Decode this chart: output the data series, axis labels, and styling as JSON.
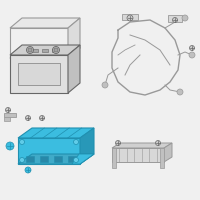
{
  "bg_color": "#f0f0f0",
  "line_color": "#999999",
  "dark_line": "#666666",
  "highlight_color": "#3bbde0",
  "highlight_dark": "#2090b0",
  "highlight_light": "#60cce8",
  "gray_fill": "#d8d8d8",
  "gray_mid": "#c0c0c0",
  "gray_dark": "#b0b0b0",
  "white_fill": "#f8f8f8",
  "figsize": [
    2.0,
    2.0
  ],
  "dpi": 100
}
